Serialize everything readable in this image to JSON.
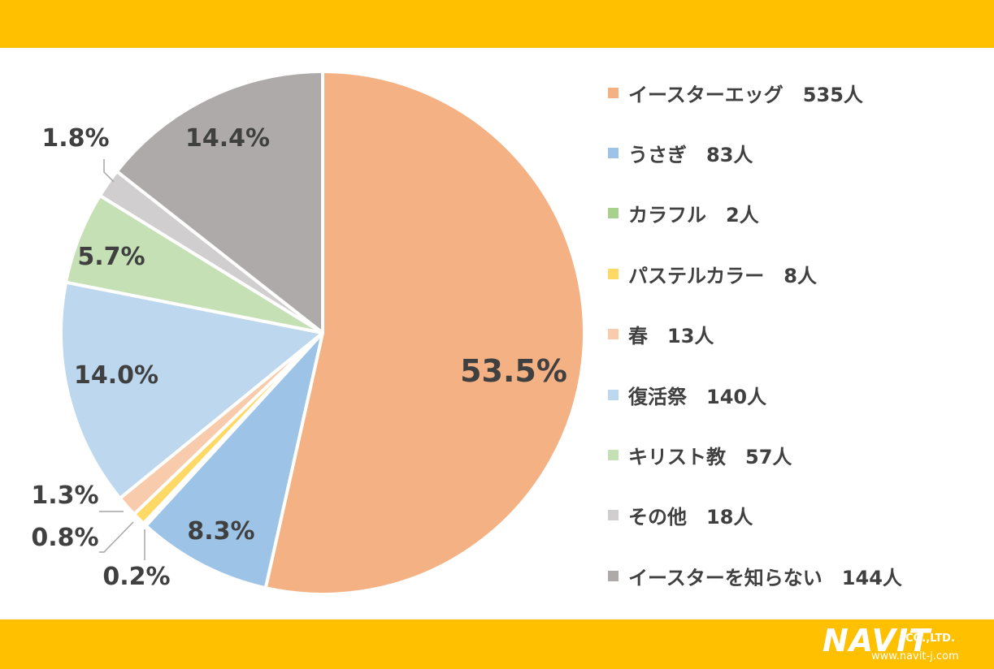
{
  "chart_data": {
    "type": "pie",
    "title": "",
    "slices": [
      {
        "label": "イースターエッグ",
        "count": "535人",
        "value": 53.5,
        "pct_label": "53.5%",
        "color": "#F4B183"
      },
      {
        "label": "うさぎ",
        "count": "83人",
        "value": 8.3,
        "pct_label": "8.3%",
        "color": "#9DC3E6"
      },
      {
        "label": "カラフル",
        "count": "2人",
        "value": 0.2,
        "pct_label": "0.2%",
        "color": "#A9D18E"
      },
      {
        "label": "パステルカラー",
        "count": "8人",
        "value": 0.8,
        "pct_label": "0.8%",
        "color": "#FFD966"
      },
      {
        "label": "春",
        "count": "13人",
        "value": 1.3,
        "pct_label": "1.3%",
        "color": "#F8CBAD"
      },
      {
        "label": "復活祭",
        "count": "140人",
        "value": 14.0,
        "pct_label": "14.0%",
        "color": "#BDD7EE"
      },
      {
        "label": "キリスト教",
        "count": "57人",
        "value": 5.7,
        "pct_label": "5.7%",
        "color": "#C5E0B4"
      },
      {
        "label": "その他",
        "count": "18人",
        "value": 1.8,
        "pct_label": "1.8%",
        "color": "#D0CECE"
      },
      {
        "label": "イースターを知らない",
        "count": "144人",
        "value": 14.4,
        "pct_label": "14.4%",
        "color": "#AEAAAA"
      }
    ],
    "legend_position": "right"
  },
  "logo": {
    "name": "NAVIT",
    "suffix": "CO.,LTD.",
    "url": "www.navit-j.com"
  },
  "colors": {
    "band": "#FFC000",
    "label_text": "#404040",
    "leader_line": "#A6A6A6"
  }
}
